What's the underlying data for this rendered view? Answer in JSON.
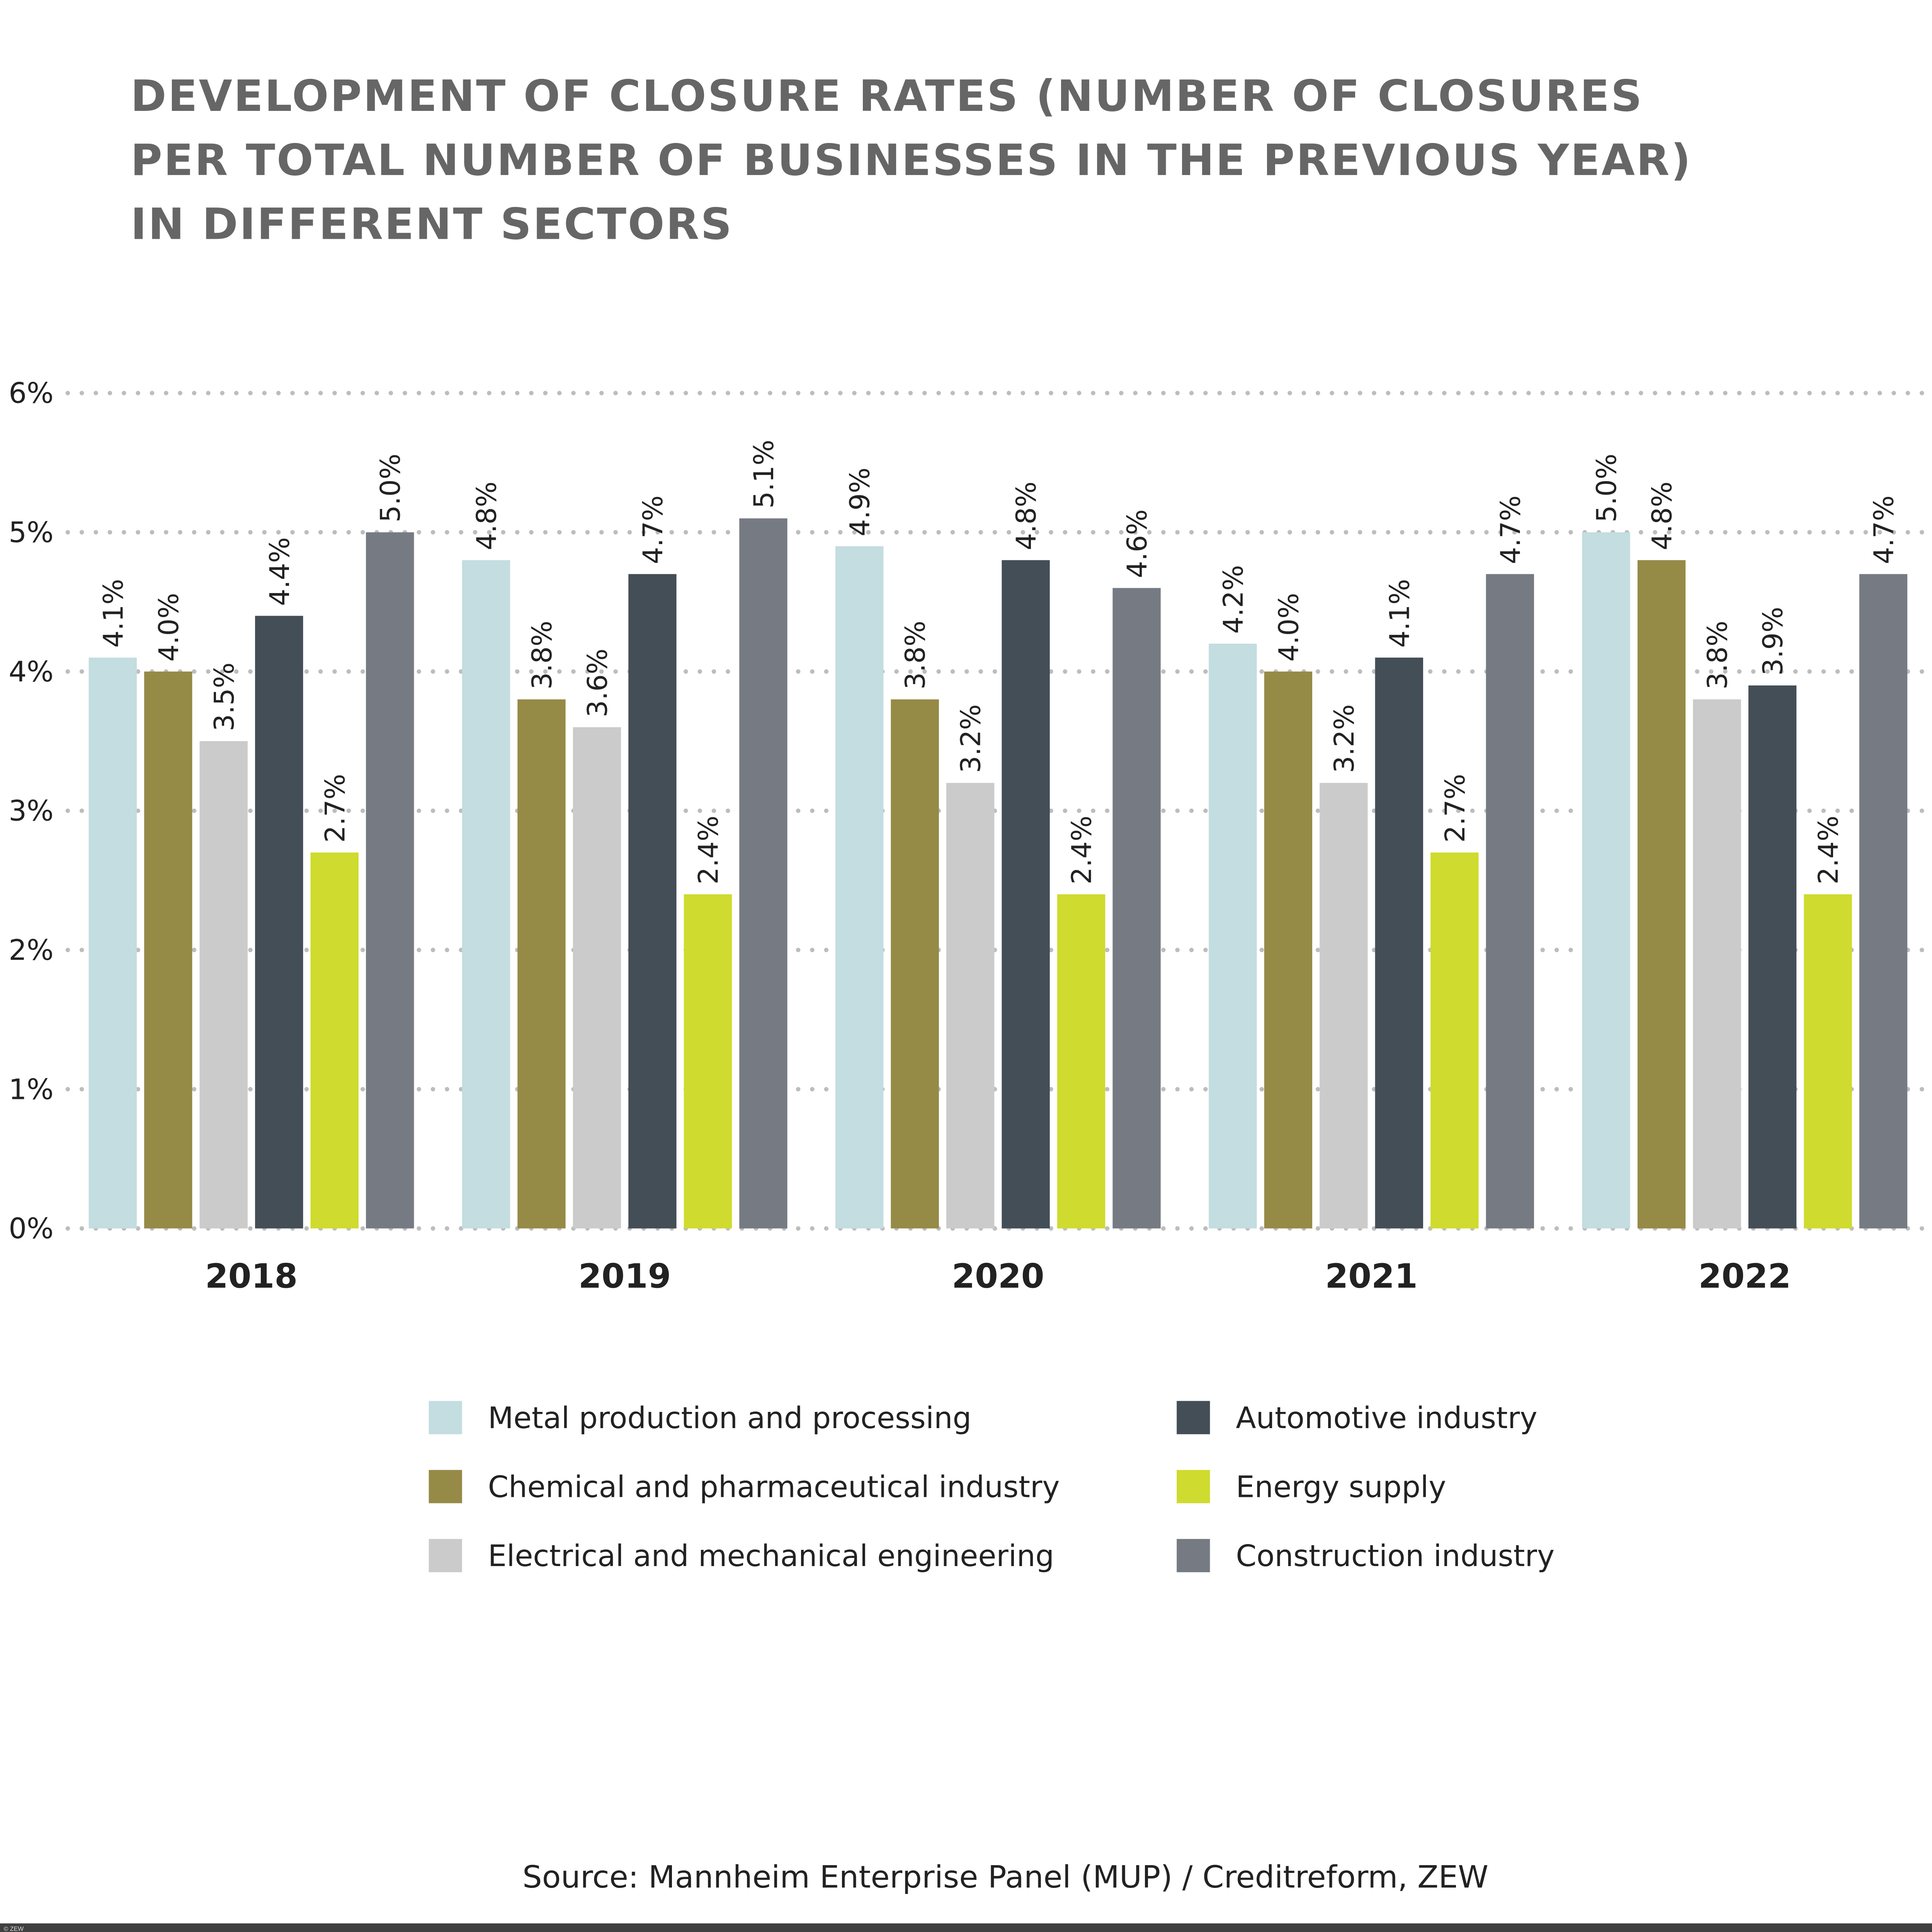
{
  "chart_data": {
    "type": "bar",
    "title": "DEVELOPMENT OF CLOSURE RATES (NUMBER OF CLOSURES PER TOTAL NUMBER OF BUSINESSES IN THE PREVIOUS YEAR) IN DIFFERENT SECTORS",
    "title_lines": [
      "DEVELOPMENT OF CLOSURE RATES (NUMBER OF CLOSURES",
      "PER TOTAL NUMBER OF BUSINESSES IN THE PREVIOUS YEAR)",
      "IN DIFFERENT SECTORS"
    ],
    "categories": [
      "2018",
      "2019",
      "2020",
      "2021",
      "2022"
    ],
    "ylim": [
      0,
      6
    ],
    "y_ticks": [
      0,
      1,
      2,
      3,
      4,
      5,
      6
    ],
    "y_tick_labels": [
      "0%",
      "1%",
      "2%",
      "3%",
      "4%",
      "5%",
      "6%"
    ],
    "grid": "horizontal dotted",
    "legend_position": "bottom",
    "series": [
      {
        "name": "Metal production and processing",
        "color": "#c3dde0",
        "values": [
          4.1,
          4.8,
          4.9,
          4.2,
          5.0
        ]
      },
      {
        "name": "Chemical and pharmaceutical industry",
        "color": "#968a47",
        "values": [
          4.0,
          3.8,
          3.8,
          4.0,
          4.8
        ]
      },
      {
        "name": "Electrical and mechanical engineering",
        "color": "#cbcbcb",
        "values": [
          3.5,
          3.6,
          3.2,
          3.2,
          3.8
        ]
      },
      {
        "name": "Automotive industry",
        "color": "#444e57",
        "values": [
          4.4,
          4.7,
          4.8,
          4.1,
          3.9
        ]
      },
      {
        "name": "Energy supply",
        "color": "#cfdb2e",
        "values": [
          2.7,
          2.4,
          2.4,
          2.7,
          2.4
        ]
      },
      {
        "name": "Construction industry",
        "color": "#767b83",
        "values": [
          5.0,
          5.1,
          4.6,
          4.7,
          4.7
        ]
      }
    ],
    "value_suffix": "%",
    "source": "Source: Mannheim Enterprise Panel (MUP) / Creditreform, ZEW"
  },
  "footer": {
    "copyright": "© ZEW",
    "bar_color": "#404040"
  }
}
